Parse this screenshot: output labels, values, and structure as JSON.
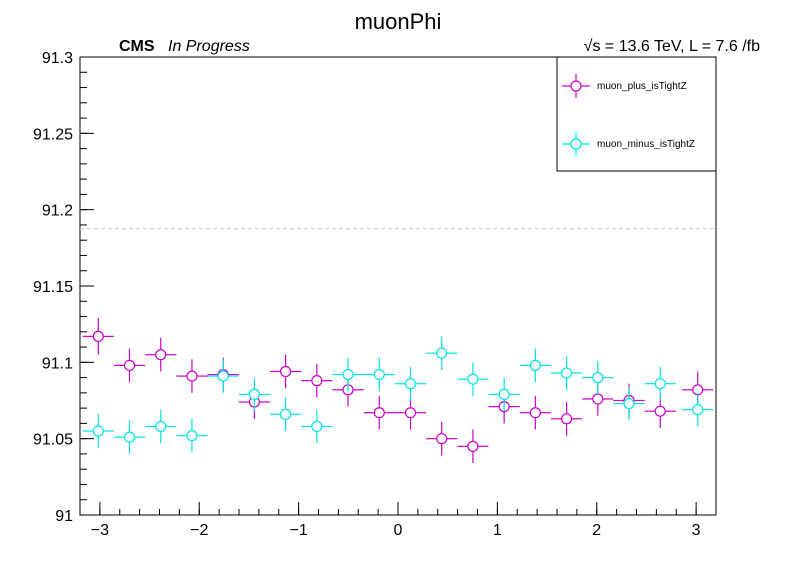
{
  "chart_data": {
    "type": "scatter",
    "title": "muonPhi",
    "label_experiment": "CMS",
    "label_status": "In Progress",
    "label_energy": "√s = 13.6 TeV, L = 7.6 /fb",
    "xlabel": "",
    "ylabel": "",
    "xlim": [
      -3.2,
      3.2
    ],
    "ylim": [
      91.0,
      91.3
    ],
    "reference_line": {
      "y": 91.1876,
      "style": "dashed",
      "color": "#c8c8c8"
    },
    "x_ticks": [
      -3,
      -2,
      -1,
      0,
      1,
      2,
      3
    ],
    "y_ticks": [
      91,
      91.05,
      91.1,
      91.15,
      91.2,
      91.25,
      91.3
    ],
    "y_tick_labels": [
      "91",
      "91.05",
      "91.1",
      "91.15",
      "91.2",
      "91.25",
      "91.3"
    ],
    "legend_position": "top-right",
    "x_bin_halfwidth": 0.1571,
    "x": [
      -3.0159,
      -2.7018,
      -2.3876,
      -2.0735,
      -1.7593,
      -1.4451,
      -1.131,
      -0.8168,
      -0.5027,
      -0.1885,
      0.1257,
      0.4398,
      0.754,
      1.0681,
      1.3823,
      1.6965,
      2.0106,
      2.3248,
      2.6389,
      2.9531
    ],
    "series": [
      {
        "name": "muon_plus_isTightZ",
        "color": "#cc00cc",
        "x": [
          -3.0159,
          -2.7018,
          -2.3876,
          -2.0735,
          -1.7593,
          -1.4451,
          -1.131,
          -0.8168,
          -0.5027,
          -0.1885,
          0.1257,
          0.4398,
          0.754,
          1.0681,
          1.3823,
          1.6965,
          2.0106,
          2.3248,
          2.6389,
          3.0159
        ],
        "values": [
          91.117,
          91.098,
          91.105,
          91.091,
          91.092,
          91.074,
          91.094,
          91.088,
          91.082,
          91.067,
          91.067,
          91.05,
          91.045,
          91.071,
          91.067,
          91.063,
          91.076,
          91.075,
          91.068,
          91.082
        ],
        "errors": [
          0.012,
          0.011,
          0.011,
          0.011,
          0.011,
          0.011,
          0.011,
          0.011,
          0.011,
          0.011,
          0.011,
          0.011,
          0.011,
          0.011,
          0.011,
          0.011,
          0.011,
          0.011,
          0.011,
          0.012
        ]
      },
      {
        "name": "muon_minus_isTightZ",
        "color": "#00e5e5",
        "x": [
          -3.0159,
          -2.7018,
          -2.3876,
          -2.0735,
          -1.7593,
          -1.4451,
          -1.131,
          -0.8168,
          -0.5027,
          -0.1885,
          0.1257,
          0.4398,
          0.754,
          1.0681,
          1.3823,
          1.6965,
          2.0106,
          2.3248,
          2.6389,
          3.0159
        ],
        "values": [
          91.055,
          91.051,
          91.058,
          91.052,
          91.091,
          91.079,
          91.066,
          91.058,
          91.092,
          91.092,
          91.086,
          91.106,
          91.089,
          91.079,
          91.098,
          91.093,
          91.09,
          91.073,
          91.086,
          91.069
        ],
        "errors": [
          0.011,
          0.011,
          0.011,
          0.011,
          0.011,
          0.011,
          0.011,
          0.011,
          0.011,
          0.011,
          0.011,
          0.011,
          0.011,
          0.011,
          0.011,
          0.011,
          0.011,
          0.011,
          0.011,
          0.011
        ]
      }
    ]
  }
}
